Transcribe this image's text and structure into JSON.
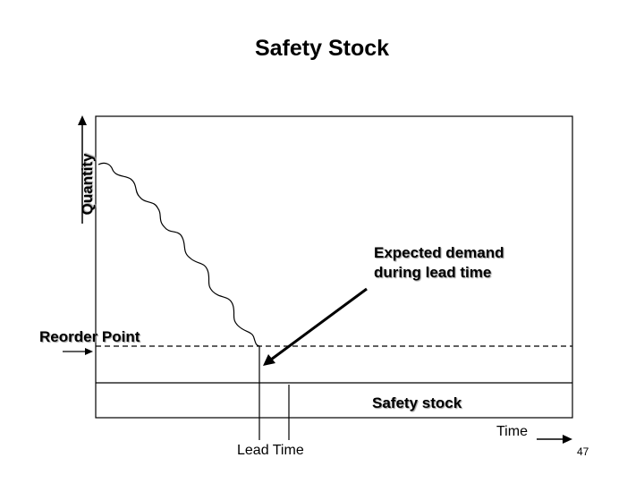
{
  "diagram": {
    "title": "Safety Stock",
    "y_axis_label": "Quantity",
    "x_axis_label": "Time",
    "expected_demand_label": [
      "Expected demand",
      "during lead time"
    ],
    "reorder_point_label": "Reorder Point",
    "safety_stock_label": "Safety stock",
    "lead_time_label": "Lead Time"
  },
  "page_number": "47"
}
